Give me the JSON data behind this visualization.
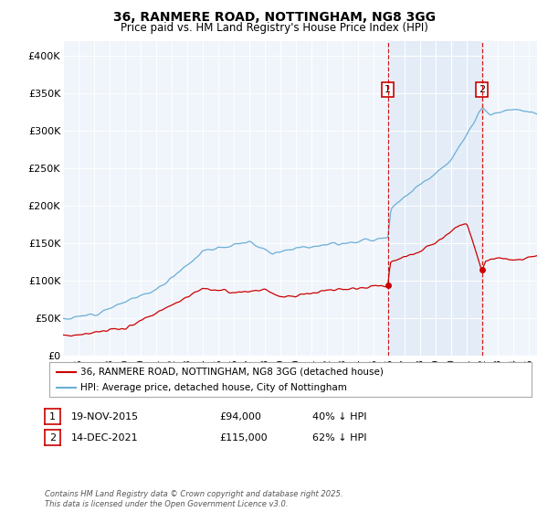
{
  "title": "36, RANMERE ROAD, NOTTINGHAM, NG8 3GG",
  "subtitle": "Price paid vs. HM Land Registry's House Price Index (HPI)",
  "legend_line1": "36, RANMERE ROAD, NOTTINGHAM, NG8 3GG (detached house)",
  "legend_line2": "HPI: Average price, detached house, City of Nottingham",
  "annotation1_label": "1",
  "annotation1_date": "19-NOV-2015",
  "annotation1_price": "£94,000",
  "annotation1_hpi": "40% ↓ HPI",
  "annotation2_label": "2",
  "annotation2_date": "14-DEC-2021",
  "annotation2_price": "£115,000",
  "annotation2_hpi": "62% ↓ HPI",
  "footnote": "Contains HM Land Registry data © Crown copyright and database right 2025.\nThis data is licensed under the Open Government Licence v3.0.",
  "hpi_color": "#6baed6",
  "price_color": "#cc0000",
  "annotation_color": "#cc0000",
  "background_color": "#dce8f5",
  "shade_color": "#dce8f5",
  "ylim": [
    0,
    420000
  ],
  "yticks": [
    0,
    50000,
    100000,
    150000,
    200000,
    250000,
    300000,
    350000,
    400000
  ],
  "ytick_labels": [
    "£0",
    "£50K",
    "£100K",
    "£150K",
    "£200K",
    "£250K",
    "£300K",
    "£350K",
    "£400K"
  ],
  "sale1_price": 94000,
  "sale1_year": 2015.9,
  "sale2_price": 115000,
  "sale2_year": 2021.96,
  "xstart": 1995.0,
  "xend": 2025.5
}
